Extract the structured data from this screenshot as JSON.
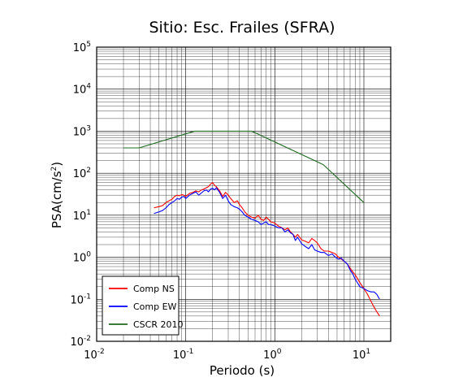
{
  "chart_data": {
    "type": "line",
    "title": "Sitio: Esc. Frailes (SFRA)",
    "xlabel": "Periodo (s)",
    "ylabel": "PSA(cm/s2)",
    "ylabel_main": "PSA(cm/s",
    "ylabel_sup": "2",
    "ylabel_close": ")",
    "x_scale": "log",
    "y_scale": "log",
    "xlim": [
      0.01,
      20
    ],
    "ylim": [
      0.01,
      100000
    ],
    "grid": true,
    "legend_position": "bottom-left",
    "x_ticks": [
      {
        "value": 0.01,
        "base": "10",
        "exp": "-2"
      },
      {
        "value": 0.1,
        "base": "10",
        "exp": "-1"
      },
      {
        "value": 1,
        "base": "10",
        "exp": "0"
      },
      {
        "value": 10,
        "base": "10",
        "exp": "1"
      }
    ],
    "y_ticks": [
      {
        "value": 0.01,
        "label": "10",
        "exp": "-2"
      },
      {
        "value": 0.1,
        "label": "10",
        "exp": "-1"
      },
      {
        "value": 1,
        "label": "10",
        "exp": "0"
      },
      {
        "value": 10,
        "label": "10",
        "exp": "1"
      },
      {
        "value": 100,
        "label": "10",
        "exp": "2"
      },
      {
        "value": 1000,
        "label": "10",
        "exp": "3"
      },
      {
        "value": 10000,
        "label": "10",
        "exp": "4"
      },
      {
        "value": 100000,
        "label": "10",
        "exp": "5"
      }
    ],
    "series": [
      {
        "name": "Comp NS",
        "color": "#ff0000",
        "x": [
          0.044,
          0.05,
          0.055,
          0.06,
          0.065,
          0.07,
          0.075,
          0.08,
          0.085,
          0.09,
          0.095,
          0.1,
          0.11,
          0.12,
          0.13,
          0.14,
          0.15,
          0.16,
          0.17,
          0.18,
          0.19,
          0.2,
          0.21,
          0.22,
          0.24,
          0.26,
          0.28,
          0.3,
          0.32,
          0.35,
          0.38,
          0.4,
          0.43,
          0.46,
          0.5,
          0.55,
          0.6,
          0.65,
          0.7,
          0.75,
          0.8,
          0.85,
          0.9,
          1.0,
          1.1,
          1.2,
          1.3,
          1.4,
          1.5,
          1.6,
          1.7,
          1.8,
          1.9,
          2.0,
          2.2,
          2.4,
          2.6,
          2.8,
          3.0,
          3.3,
          3.6,
          4.0,
          4.4,
          4.8,
          5.2,
          5.6,
          6.0,
          6.5,
          7.0,
          7.5,
          8.0,
          9.0,
          10.0,
          11.0,
          12.0,
          13.0,
          14.0,
          15.0
        ],
        "y": [
          15,
          16,
          17,
          20,
          22,
          24,
          28,
          30,
          29,
          31,
          30,
          28,
          33,
          35,
          38,
          36,
          40,
          42,
          45,
          48,
          55,
          60,
          52,
          48,
          38,
          28,
          35,
          30,
          25,
          20,
          22,
          18,
          15,
          12,
          10,
          9,
          8.5,
          10,
          8,
          7.5,
          9,
          8,
          7,
          6.5,
          5.5,
          5,
          4.5,
          5,
          4,
          3.5,
          3,
          3.5,
          3,
          2.6,
          2.4,
          2.2,
          2.8,
          2.5,
          2.2,
          1.6,
          1.4,
          1.4,
          1.3,
          1.2,
          1.0,
          0.9,
          0.8,
          0.7,
          0.55,
          0.45,
          0.38,
          0.25,
          0.18,
          0.13,
          0.09,
          0.065,
          0.05,
          0.04
        ]
      },
      {
        "name": "Comp EW",
        "color": "#0000ff",
        "x": [
          0.044,
          0.05,
          0.055,
          0.06,
          0.065,
          0.07,
          0.075,
          0.08,
          0.085,
          0.09,
          0.095,
          0.1,
          0.11,
          0.12,
          0.13,
          0.14,
          0.15,
          0.16,
          0.17,
          0.18,
          0.19,
          0.2,
          0.21,
          0.22,
          0.24,
          0.26,
          0.28,
          0.3,
          0.32,
          0.35,
          0.38,
          0.4,
          0.43,
          0.46,
          0.5,
          0.55,
          0.6,
          0.65,
          0.7,
          0.75,
          0.8,
          0.85,
          0.9,
          1.0,
          1.1,
          1.2,
          1.3,
          1.4,
          1.5,
          1.6,
          1.7,
          1.8,
          1.9,
          2.0,
          2.2,
          2.4,
          2.6,
          2.8,
          3.0,
          3.3,
          3.6,
          4.0,
          4.4,
          4.8,
          5.2,
          5.6,
          6.0,
          6.5,
          7.0,
          7.5,
          8.0,
          9.0,
          10.0,
          11.0,
          12.0,
          13.0,
          14.0,
          15.0
        ],
        "y": [
          11,
          12,
          13,
          15,
          18,
          20,
          22,
          25,
          24,
          27,
          28,
          25,
          30,
          33,
          36,
          30,
          34,
          38,
          40,
          36,
          42,
          44,
          40,
          45,
          35,
          25,
          30,
          22,
          18,
          16,
          15,
          14,
          12,
          10,
          9,
          8,
          7.5,
          7,
          6,
          6.5,
          7,
          6,
          6,
          5.5,
          5,
          5,
          4,
          4.5,
          3.8,
          3.5,
          2.5,
          3,
          2.5,
          2.1,
          1.8,
          1.6,
          2.0,
          1.5,
          1.4,
          1.3,
          1.3,
          1.1,
          1.2,
          1.0,
          0.9,
          0.95,
          0.8,
          0.7,
          0.5,
          0.4,
          0.3,
          0.2,
          0.18,
          0.16,
          0.15,
          0.15,
          0.13,
          0.1
        ]
      },
      {
        "name": "CSCR 2010",
        "color": "#1e6b1e",
        "x": [
          0.02,
          0.03,
          0.125,
          0.55,
          3.5,
          10
        ],
        "y": [
          400,
          400,
          1000,
          1000,
          160,
          20
        ]
      }
    ]
  }
}
